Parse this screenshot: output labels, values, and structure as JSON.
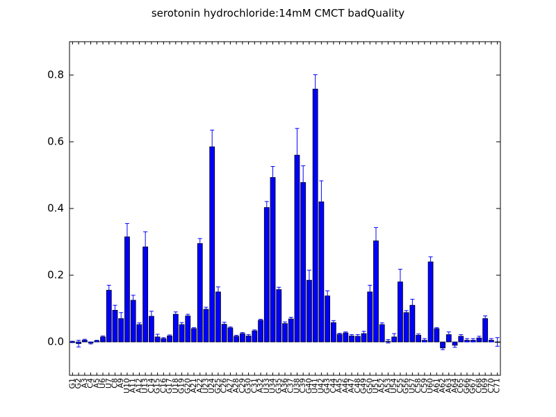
{
  "chart_data": {
    "type": "bar",
    "title": "serotonin hydrochloride:14mM  CMCT  badQuality",
    "xlabel": "",
    "ylabel": "",
    "ylim": [
      -0.1,
      0.9
    ],
    "yticks": [
      0.0,
      0.2,
      0.4,
      0.6,
      0.8
    ],
    "ytick_labels": [
      "0.0",
      "0.2",
      "0.4",
      "0.6",
      "0.8"
    ],
    "grid": false,
    "bar_color": "#0000ff",
    "error_color": "#0000ff",
    "categories": [
      "G1",
      "G2",
      "A3",
      "C4",
      "A5",
      "U6",
      "U7",
      "C8",
      "A9",
      "U10",
      "A11",
      "A12",
      "U13",
      "C14",
      "G15",
      "C16",
      "G17",
      "U18",
      "G19",
      "G20",
      "A21",
      "A22",
      "U23",
      "U24",
      "G25",
      "C26",
      "A27",
      "A28",
      "C29",
      "G30",
      "C31",
      "A32",
      "U33",
      "U34",
      "G35",
      "A36",
      "C37",
      "U38",
      "C39",
      "G40",
      "U41",
      "U42",
      "G43",
      "C44",
      "A45",
      "A46",
      "A47",
      "C48",
      "G49",
      "G50",
      "U51",
      "A52",
      "A53",
      "U54",
      "C55",
      "G56",
      "U57",
      "C58",
      "C59",
      "U60",
      "A61",
      "A62",
      "A63",
      "A64",
      "C65",
      "G66",
      "G67",
      "C68",
      "U69",
      "C70",
      "C71"
    ],
    "values": [
      0.0,
      -0.005,
      0.005,
      -0.003,
      0.003,
      0.015,
      0.155,
      0.095,
      0.07,
      0.315,
      0.125,
      0.052,
      0.285,
      0.077,
      0.015,
      0.01,
      0.018,
      0.083,
      0.052,
      0.078,
      0.04,
      0.295,
      0.098,
      0.585,
      0.15,
      0.053,
      0.042,
      0.017,
      0.025,
      0.018,
      0.033,
      0.065,
      0.403,
      0.493,
      0.157,
      0.055,
      0.069,
      0.56,
      0.478,
      0.185,
      0.758,
      0.42,
      0.138,
      0.058,
      0.023,
      0.027,
      0.018,
      0.017,
      0.025,
      0.15,
      0.303,
      0.052,
      0.002,
      0.015,
      0.18,
      0.088,
      0.11,
      0.02,
      0.005,
      0.24,
      0.04,
      -0.018,
      0.022,
      -0.01,
      0.017,
      0.005,
      0.005,
      0.012,
      0.07,
      0.005,
      0.0
    ],
    "errors": [
      0.002,
      0.01,
      0.003,
      0.003,
      0.002,
      0.003,
      0.015,
      0.015,
      0.018,
      0.04,
      0.015,
      0.005,
      0.045,
      0.015,
      0.008,
      0.003,
      0.003,
      0.007,
      0.006,
      0.005,
      0.003,
      0.015,
      0.006,
      0.05,
      0.015,
      0.006,
      0.003,
      0.003,
      0.003,
      0.004,
      0.003,
      0.003,
      0.018,
      0.033,
      0.007,
      0.005,
      0.005,
      0.08,
      0.05,
      0.03,
      0.043,
      0.063,
      0.015,
      0.006,
      0.003,
      0.003,
      0.004,
      0.005,
      0.007,
      0.02,
      0.04,
      0.005,
      0.005,
      0.01,
      0.038,
      0.006,
      0.018,
      0.004,
      0.005,
      0.015,
      0.003,
      0.005,
      0.008,
      0.006,
      0.005,
      0.005,
      0.005,
      0.005,
      0.008,
      0.005,
      0.013
    ]
  }
}
